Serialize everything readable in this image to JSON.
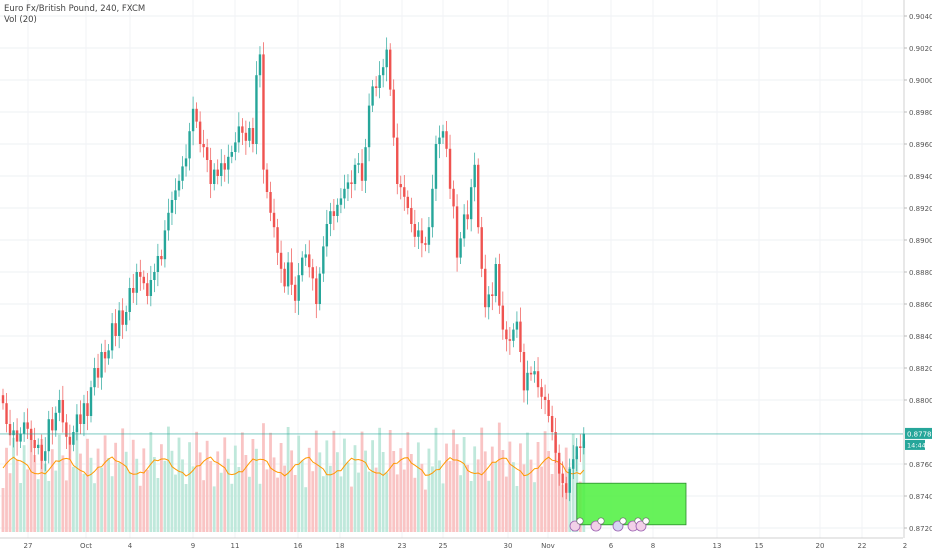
{
  "header": {
    "symbol": "Euro Fx/British Pound, 240, FXCM",
    "volume_study": "Vol (20)"
  },
  "price_tag": {
    "value": "0.87788",
    "countdown": "14:44"
  },
  "colors": {
    "up": "#26a69a",
    "down": "#ef5350",
    "vol_up": "#bfe8db",
    "vol_down": "#f9c4c4",
    "ma": "#ff9800",
    "box": "#4cf03d",
    "price_line": "#26a69a"
  },
  "chart_data": {
    "type": "candlestick",
    "ylim": [
      0.871,
      0.905
    ],
    "y_ticks": [
      "0.90400",
      "0.90200",
      "0.90000",
      "0.89800",
      "0.89600",
      "0.89400",
      "0.89200",
      "0.89000",
      "0.88800",
      "0.88600",
      "0.88400",
      "0.88200",
      "0.88000",
      "0.87600",
      "0.87400",
      "0.87200"
    ],
    "x_ticks": [
      "27",
      "Oct",
      "4",
      "9",
      "11",
      "16",
      "18",
      "23",
      "25",
      "30",
      "Nov",
      "6",
      "8",
      "13",
      "15",
      "20",
      "22",
      "2"
    ],
    "close": [
      0.8798,
      0.8785,
      0.8778,
      0.8781,
      0.8774,
      0.8779,
      0.8786,
      0.8782,
      0.8775,
      0.877,
      0.8772,
      0.8762,
      0.8768,
      0.8788,
      0.8781,
      0.8792,
      0.88,
      0.8786,
      0.8777,
      0.8772,
      0.878,
      0.8791,
      0.8785,
      0.8798,
      0.879,
      0.8808,
      0.882,
      0.8814,
      0.883,
      0.8826,
      0.8831,
      0.8848,
      0.884,
      0.8856,
      0.8847,
      0.8855,
      0.887,
      0.8867,
      0.888,
      0.8877,
      0.8873,
      0.8865,
      0.8875,
      0.888,
      0.889,
      0.8888,
      0.8906,
      0.8917,
      0.8925,
      0.8931,
      0.8937,
      0.8946,
      0.8951,
      0.8968,
      0.8982,
      0.8974,
      0.896,
      0.8958,
      0.895,
      0.8935,
      0.8944,
      0.894,
      0.8948,
      0.8944,
      0.8952,
      0.8955,
      0.8961,
      0.8971,
      0.8967,
      0.8962,
      0.897,
      0.896,
      0.9003,
      0.9016,
      0.8944,
      0.893,
      0.8917,
      0.8908,
      0.8892,
      0.8882,
      0.8871,
      0.8886,
      0.8872,
      0.8862,
      0.8878,
      0.8889,
      0.8891,
      0.8883,
      0.8876,
      0.886,
      0.8879,
      0.8896,
      0.891,
      0.8918,
      0.8915,
      0.8922,
      0.8926,
      0.8932,
      0.8936,
      0.8935,
      0.8947,
      0.8948,
      0.8937,
      0.8958,
      0.8984,
      0.8996,
      0.8995,
      0.9003,
      0.9008,
      0.9019,
      0.8994,
      0.8964,
      0.8935,
      0.8933,
      0.8927,
      0.892,
      0.891,
      0.8902,
      0.8906,
      0.8898,
      0.8897,
      0.8908,
      0.8932,
      0.896,
      0.8964,
      0.8968,
      0.8957,
      0.8932,
      0.8921,
      0.8889,
      0.8901,
      0.8916,
      0.8913,
      0.8933,
      0.8947,
      0.8908,
      0.8882,
      0.8858,
      0.8866,
      0.8865,
      0.8885,
      0.8859,
      0.8844,
      0.8838,
      0.8837,
      0.8844,
      0.8849,
      0.883,
      0.8806,
      0.8817,
      0.8816,
      0.8818,
      0.8808,
      0.8802,
      0.88,
      0.879,
      0.878,
      0.8767,
      0.8754,
      0.8748,
      0.8742,
      0.8757,
      0.8763,
      0.8771,
      0.877,
      0.8779
    ],
    "volume_ma_shown": true,
    "annotation_box": {
      "price_low": 0.8722,
      "price_high": 0.8748
    },
    "last_price": 0.87788
  }
}
